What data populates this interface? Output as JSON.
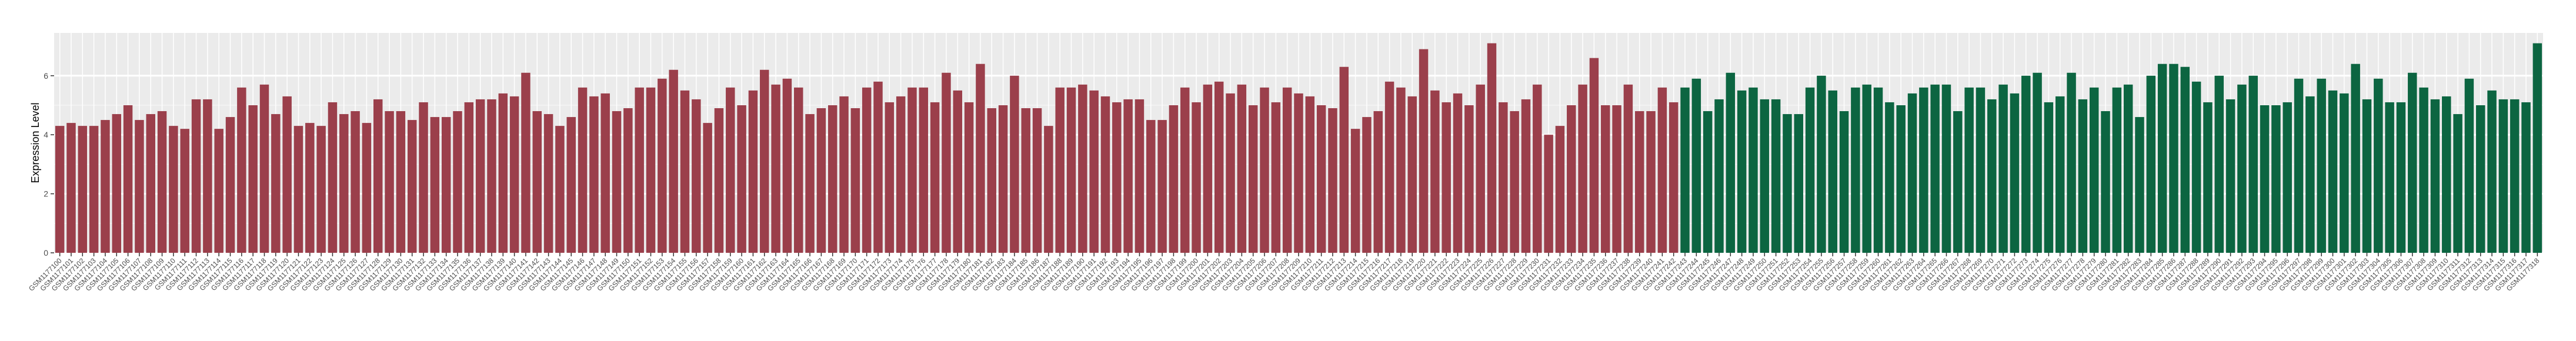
{
  "chart_data": {
    "type": "bar",
    "y_label": "Expression Level",
    "ylim": [
      0,
      7.45
    ],
    "yticks": [
      0,
      2,
      4,
      6
    ],
    "grid": true,
    "series": [
      {
        "color": "#9b3f4b",
        "categories": [
          "GSM1177100",
          "GSM1177101",
          "GSM1177102",
          "GSM1177103",
          "GSM1177104",
          "GSM1177105",
          "GSM1177106",
          "GSM1177107",
          "GSM1177108",
          "GSM1177109",
          "GSM1177110",
          "GSM1177111",
          "GSM1177112",
          "GSM1177113",
          "GSM1177114",
          "GSM1177115",
          "GSM1177116",
          "GSM1177117",
          "GSM1177118",
          "GSM1177119",
          "GSM1177120",
          "GSM1177121",
          "GSM1177122",
          "GSM1177123",
          "GSM1177124",
          "GSM1177125",
          "GSM1177126",
          "GSM1177127",
          "GSM1177128",
          "GSM1177129",
          "GSM1177130",
          "GSM1177131",
          "GSM1177132",
          "GSM1177133",
          "GSM1177134",
          "GSM1177135",
          "GSM1177136",
          "GSM1177137",
          "GSM1177138",
          "GSM1177139",
          "GSM1177140",
          "GSM1177141",
          "GSM1177142",
          "GSM1177143",
          "GSM1177144",
          "GSM1177145",
          "GSM1177146",
          "GSM1177147",
          "GSM1177148",
          "GSM1177149",
          "GSM1177150",
          "GSM1177151",
          "GSM1177152",
          "GSM1177153",
          "GSM1177154",
          "GSM1177155",
          "GSM1177156",
          "GSM1177157",
          "GSM1177158",
          "GSM1177159",
          "GSM1177160",
          "GSM1177161",
          "GSM1177162",
          "GSM1177163",
          "GSM1177164",
          "GSM1177165",
          "GSM1177166",
          "GSM1177167",
          "GSM1177168",
          "GSM1177169",
          "GSM1177170",
          "GSM1177171",
          "GSM1177172",
          "GSM1177173",
          "GSM1177174",
          "GSM1177175",
          "GSM1177176",
          "GSM1177177",
          "GSM1177178",
          "GSM1177179",
          "GSM1177180",
          "GSM1177181",
          "GSM1177182",
          "GSM1177183",
          "GSM1177184",
          "GSM1177185",
          "GSM1177186",
          "GSM1177187",
          "GSM1177188",
          "GSM1177189",
          "GSM1177190",
          "GSM1177191",
          "GSM1177192",
          "GSM1177193",
          "GSM1177194",
          "GSM1177195",
          "GSM1177196",
          "GSM1177197",
          "GSM1177198",
          "GSM1177199",
          "GSM1177200",
          "GSM1177201",
          "GSM1177202",
          "GSM1177203",
          "GSM1177204",
          "GSM1177205",
          "GSM1177206",
          "GSM1177207",
          "GSM1177208",
          "GSM1177209",
          "GSM1177210",
          "GSM1177211",
          "GSM1177212",
          "GSM1177213",
          "GSM1177214",
          "GSM1177215",
          "GSM1177216",
          "GSM1177217",
          "GSM1177218",
          "GSM1177219",
          "GSM1177220",
          "GSM1177221",
          "GSM1177222",
          "GSM1177223",
          "GSM1177224",
          "GSM1177225",
          "GSM1177226",
          "GSM1177227",
          "GSM1177228",
          "GSM1177229",
          "GSM1177230",
          "GSM1177231",
          "GSM1177232",
          "GSM1177233",
          "GSM1177234",
          "GSM1177235",
          "GSM1177236",
          "GSM1177237",
          "GSM1177238",
          "GSM1177239",
          "GSM1177240",
          "GSM1177241",
          "GSM1177242"
        ],
        "values": [
          4.3,
          4.4,
          4.3,
          4.3,
          4.5,
          4.7,
          5.0,
          4.5,
          4.7,
          4.8,
          4.3,
          4.2,
          5.2,
          5.2,
          4.2,
          4.6,
          5.6,
          5.0,
          5.7,
          4.7,
          5.3,
          4.3,
          4.4,
          4.3,
          5.1,
          4.7,
          4.8,
          4.4,
          5.2,
          4.8,
          4.8,
          4.5,
          5.1,
          4.6,
          4.6,
          4.8,
          5.1,
          5.2,
          5.2,
          5.4,
          5.3,
          6.1,
          4.8,
          4.7,
          4.3,
          4.6,
          5.6,
          5.3,
          5.4,
          4.8,
          4.9,
          5.6,
          5.6,
          5.9,
          6.2,
          5.5,
          5.2,
          4.4,
          4.9,
          5.6,
          5.0,
          5.5,
          6.2,
          5.7,
          5.9,
          5.6,
          4.7,
          4.9,
          5.0,
          5.3,
          4.9,
          5.6,
          5.8,
          5.1,
          5.3,
          5.6,
          5.6,
          5.1,
          6.1,
          5.5,
          5.1,
          6.4,
          4.9,
          5.0,
          6.0,
          4.9,
          4.9,
          4.3,
          5.6,
          5.6,
          5.7,
          5.5,
          5.3,
          5.1,
          5.2,
          5.2,
          4.5,
          4.5,
          5.0,
          5.6,
          5.1,
          5.7,
          5.8,
          5.4,
          5.7,
          5.0,
          5.6,
          5.1,
          5.6,
          5.4,
          5.3,
          5.0,
          4.9,
          6.3,
          4.2,
          4.6,
          4.8,
          5.8,
          5.6,
          5.3,
          6.9,
          5.5,
          5.1,
          5.4,
          5.0,
          5.7,
          7.1,
          5.1,
          4.8,
          5.2,
          5.7,
          4.0,
          4.3,
          5.0,
          5.7,
          6.6,
          5.0,
          5.0,
          5.7,
          4.8,
          4.8,
          5.6,
          5.1
        ]
      },
      {
        "color": "#0c6541",
        "categories": [
          "GSM1177243",
          "GSM1177244",
          "GSM1177245",
          "GSM1177246",
          "GSM1177247",
          "GSM1177248",
          "GSM1177249",
          "GSM1177250",
          "GSM1177251",
          "GSM1177252",
          "GSM1177253",
          "GSM1177254",
          "GSM1177255",
          "GSM1177256",
          "GSM1177257",
          "GSM1177258",
          "GSM1177259",
          "GSM1177260",
          "GSM1177261",
          "GSM1177262",
          "GSM1177263",
          "GSM1177264",
          "GSM1177265",
          "GSM1177266",
          "GSM1177267",
          "GSM1177268",
          "GSM1177269",
          "GSM1177270",
          "GSM1177271",
          "GSM1177272",
          "GSM1177273",
          "GSM1177274",
          "GSM1177275",
          "GSM1177276",
          "GSM1177277",
          "GSM1177278",
          "GSM1177279",
          "GSM1177280",
          "GSM1177281",
          "GSM1177282",
          "GSM1177283",
          "GSM1177284",
          "GSM1177285",
          "GSM1177286",
          "GSM1177287",
          "GSM1177288",
          "GSM1177289",
          "GSM1177290",
          "GSM1177291",
          "GSM1177292",
          "GSM1177293",
          "GSM1177294",
          "GSM1177295",
          "GSM1177296",
          "GSM1177297",
          "GSM1177298",
          "GSM1177299",
          "GSM1177300",
          "GSM1177301",
          "GSM1177302",
          "GSM1177303",
          "GSM1177304",
          "GSM1177305",
          "GSM1177306",
          "GSM1177307",
          "GSM1177308",
          "GSM1177309",
          "GSM1177310",
          "GSM1177311",
          "GSM1177312",
          "GSM1177313",
          "GSM1177314",
          "GSM1177315",
          "GSM1177316",
          "GSM1177317",
          "GSM1177318"
        ],
        "values": [
          5.6,
          5.9,
          4.8,
          5.2,
          6.1,
          5.5,
          5.6,
          5.2,
          5.2,
          4.7,
          4.7,
          5.6,
          6.0,
          5.5,
          4.8,
          5.6,
          5.7,
          5.6,
          5.1,
          5.0,
          5.4,
          5.6,
          5.7,
          5.7,
          4.8,
          5.6,
          5.6,
          5.2,
          5.7,
          5.4,
          6.0,
          6.1,
          5.1,
          5.3,
          6.1,
          5.2,
          5.6,
          4.8,
          5.6,
          5.7,
          4.6,
          6.0,
          6.4,
          6.4,
          6.3,
          5.8,
          5.1,
          6.0,
          5.2,
          5.7,
          6.0,
          5.0,
          5.0,
          5.1,
          5.9,
          5.3,
          5.9,
          5.5,
          5.4,
          6.4,
          5.2,
          5.9,
          5.1,
          5.1,
          6.1,
          5.6,
          5.2,
          5.3,
          4.7,
          5.9,
          5.0,
          5.5,
          5.2,
          5.2,
          5.1,
          7.1
        ]
      }
    ]
  }
}
